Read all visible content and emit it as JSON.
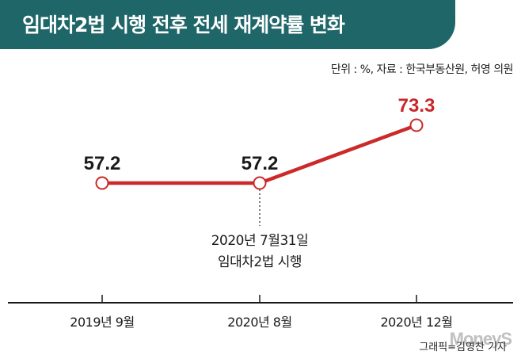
{
  "header": {
    "title": "임대차2법 시행 전후 전세 재계약률 변화"
  },
  "source_note": "단위 : %, 자료 : 한국부동산원, 허영 의원",
  "chart_data": {
    "type": "line",
    "categories": [
      "2019년 9월",
      "2020년 8월",
      "2020년 12월"
    ],
    "values": [
      57.2,
      57.2,
      73.3
    ],
    "data_labels": [
      "57.2",
      "57.2",
      "73.3"
    ],
    "unit": "%",
    "annotation": {
      "at_category": "2020년 8월",
      "lines": [
        "2020년 7월31일",
        "임대차2법 시행"
      ]
    },
    "grid": false,
    "colors": {
      "line": "#cc2a2a",
      "highlight_label": "#c8262a",
      "label": "#1a1a1a"
    }
  },
  "credit": "그래픽=김영찬 기자",
  "watermark": "MoneyS",
  "colors": {
    "banner": "#1f6668"
  }
}
